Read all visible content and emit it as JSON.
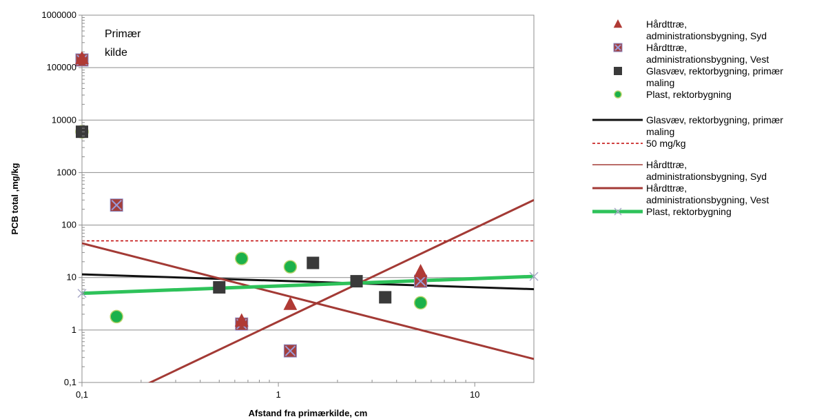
{
  "chart_data": {
    "type": "scatter",
    "xlabel": "Afstand fra primærkilde, cm",
    "ylabel": "PCB total ,mg/kg",
    "x_scale": "log",
    "y_scale": "log",
    "xlim": [
      0.1,
      20
    ],
    "ylim": [
      0.1,
      1000000
    ],
    "x_ticks": [
      0.1,
      1,
      10
    ],
    "x_tick_labels": [
      "0,1",
      "1",
      "10"
    ],
    "y_ticks": [
      0.1,
      1,
      10,
      100,
      1000,
      10000,
      100000,
      1000000
    ],
    "y_tick_labels": [
      "0,1",
      "1",
      "10",
      "100",
      "1000",
      "10000",
      "100000",
      "1000000"
    ],
    "grid": "horizontal",
    "legend_position": "right",
    "annotation": [
      "Primær",
      "kilde"
    ],
    "series": [
      {
        "name": "Hårdttræ, administrationsbygning, Syd",
        "kind": "scatter",
        "marker": "triangle",
        "color": "#b03a35",
        "points": [
          [
            0.1,
            150000
          ],
          [
            0.65,
            1.5
          ],
          [
            1.15,
            3.1
          ],
          [
            5.3,
            13
          ]
        ]
      },
      {
        "name": "Hårdttræ, administrationsbygning, Vest",
        "kind": "scatter",
        "marker": "square-x",
        "color": "#a33f3c",
        "points": [
          [
            0.1,
            140000
          ],
          [
            0.15,
            240
          ],
          [
            0.65,
            1.3
          ],
          [
            1.15,
            0.4
          ],
          [
            5.3,
            8.5
          ]
        ]
      },
      {
        "name": "Glasvæv, rektorbygning, primær maling",
        "kind": "scatter",
        "marker": "square",
        "color": "#3a3a3a",
        "points": [
          [
            0.1,
            6000
          ],
          [
            0.5,
            6.5
          ],
          [
            1.5,
            19
          ],
          [
            2.5,
            8.5
          ],
          [
            3.5,
            4.2
          ]
        ]
      },
      {
        "name": "Plast, rektorbygning",
        "kind": "scatter",
        "marker": "circle",
        "color": "#1cb14a",
        "points": [
          [
            0.1,
            6000
          ],
          [
            0.15,
            1.8
          ],
          [
            0.65,
            23
          ],
          [
            1.15,
            16
          ],
          [
            5.3,
            3.3
          ]
        ]
      },
      {
        "name": "Glasvæv, rektorbygning, primær maling",
        "kind": "trendline",
        "color": "#111111",
        "width": 3,
        "points": [
          [
            0.1,
            11.5
          ],
          [
            20,
            6
          ]
        ]
      },
      {
        "name": "50 mg/kg",
        "kind": "reference",
        "style": "dashed",
        "color": "#c00000",
        "width": 1.5,
        "points": [
          [
            0.1,
            50
          ],
          [
            20,
            50
          ]
        ]
      },
      {
        "name": "Hårdttræ, administrationsbygning, Syd",
        "kind": "trendline",
        "color": "#a33a35",
        "width": 3,
        "points": [
          [
            0.1,
            45
          ],
          [
            20,
            0.28
          ]
        ]
      },
      {
        "name": "Hårdttræ, administrationsbygning, Vest",
        "kind": "trendline",
        "color": "#a33a35",
        "width": 3,
        "points": [
          [
            0.21,
            0.09
          ],
          [
            20,
            300
          ]
        ]
      },
      {
        "name": "Plast, rektorbygning",
        "kind": "trendline",
        "color": "#2ec25a",
        "width": 5,
        "endpoint_marker": "x",
        "endpoint_color": "#a8a8c8",
        "points": [
          [
            0.1,
            5
          ],
          [
            20,
            10.5
          ]
        ]
      }
    ],
    "legend": [
      {
        "lines": [
          "Hårdttræ,",
          "administrationsbygning, Syd"
        ],
        "symbol": "triangle",
        "color": "#b03a35"
      },
      {
        "lines": [
          "Hårdttræ,",
          "administrationsbygning, Vest"
        ],
        "symbol": "square-x",
        "color": "#a33f3c"
      },
      {
        "lines": [
          "Glasvæv, rektorbygning, primær",
          "maling"
        ],
        "symbol": "square",
        "color": "#3a3a3a"
      },
      {
        "lines": [
          "Plast, rektorbygning"
        ],
        "symbol": "circle",
        "color": "#1cb14a"
      },
      {
        "lines": [
          "Glasvæv, rektorbygning, primær",
          "maling"
        ],
        "symbol": "line",
        "color": "#111111",
        "width": 3
      },
      {
        "lines": [
          "50 mg/kg"
        ],
        "symbol": "dashed-line",
        "color": "#c00000",
        "width": 1.5
      },
      {
        "lines": [
          "Hårdttræ,",
          "administrationsbygning, Syd"
        ],
        "symbol": "line",
        "color": "#a33a35",
        "width": 1.5
      },
      {
        "lines": [
          "Hårdttræ,",
          "administrationsbygning, Vest"
        ],
        "symbol": "line",
        "color": "#a33a35",
        "width": 3
      },
      {
        "lines": [
          "Plast, rektorbygning"
        ],
        "symbol": "line-x",
        "color": "#2ec25a",
        "width": 5
      }
    ]
  }
}
